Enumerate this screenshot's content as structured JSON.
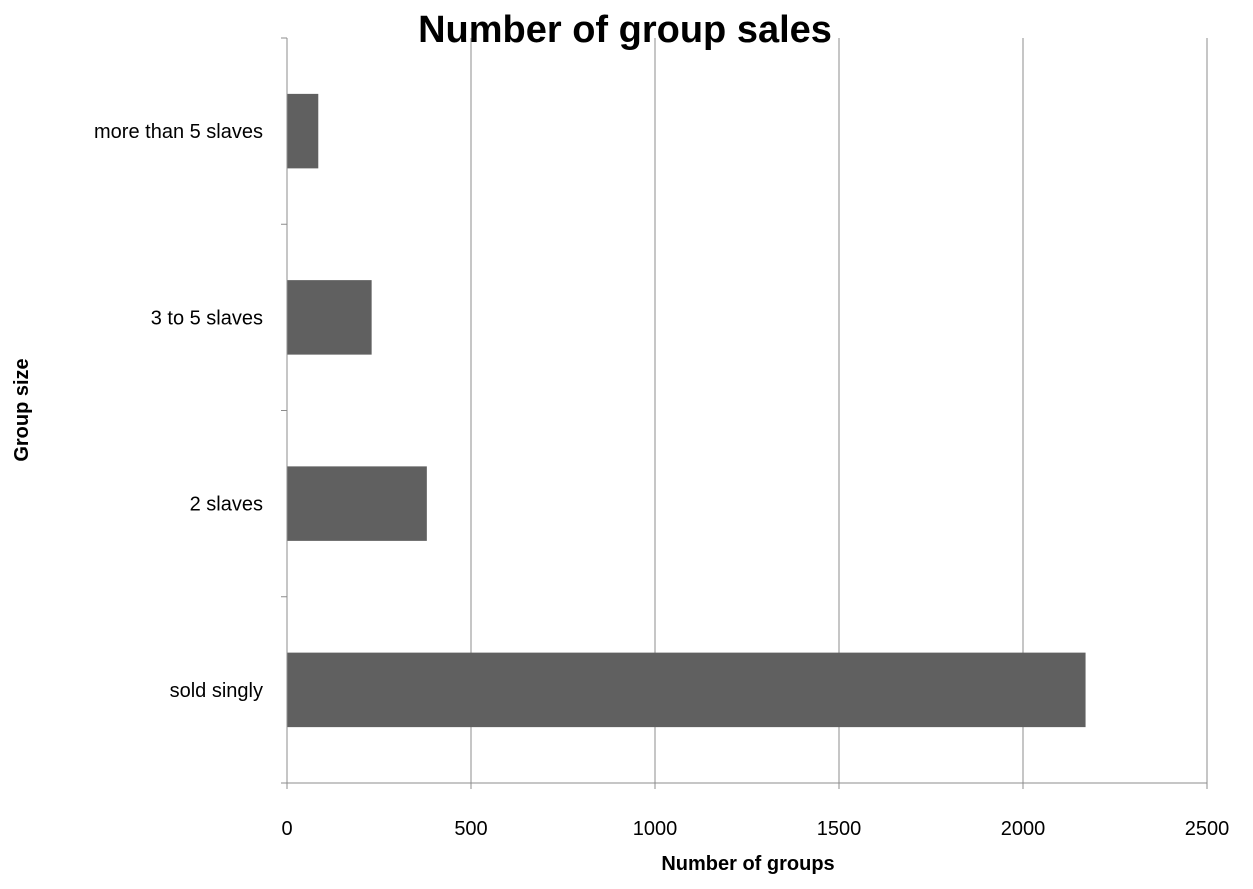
{
  "chart_data": {
    "type": "bar",
    "orientation": "horizontal",
    "title": "Number of group sales",
    "xlabel": "Number of groups",
    "ylabel": "Group size",
    "categories": [
      "sold singly",
      "2 slaves",
      "3 to 5 slaves",
      "more than 5 slaves"
    ],
    "values": [
      2170,
      380,
      230,
      85
    ],
    "xlim": [
      0,
      2500
    ],
    "xticks": [
      "0",
      "500",
      "1000",
      "1500",
      "2000",
      "2500"
    ],
    "grid": true,
    "legend": "none",
    "bar_color": "#606060"
  }
}
